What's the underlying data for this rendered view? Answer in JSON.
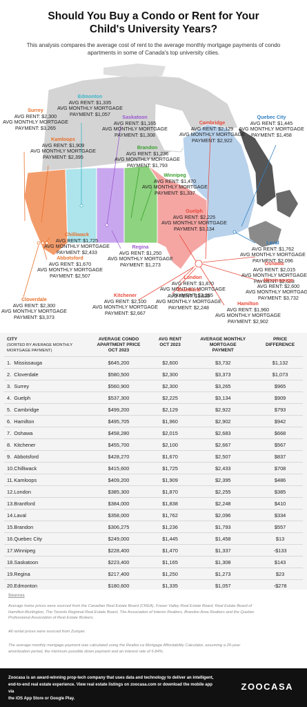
{
  "header": {
    "title_line1": "Should You Buy a Condo or Rent for Your",
    "title_line2": "Child's University Years?",
    "subtitle_line1": "This analysis compares the average cost of rent to the average monthly mortgage payments of condo",
    "subtitle_line2": "apartments in some of Canada's top university cities."
  },
  "colors": {
    "bc": "#f39c6b",
    "alberta": "#aee4ec",
    "saskatchewan": "#c9a7ee",
    "manitoba": "#8ed37f",
    "ontario": "#f5a6a3",
    "quebec": "#b8d2ec",
    "atlantic": "#8a8a8a",
    "north": "#cccccc",
    "bc_text": "#e8702a",
    "alberta_text": "#3bb5c9",
    "sask_text": "#9b59d0",
    "manitoba_text": "#3aa02e",
    "ontario_text": "#e94b3c",
    "quebec_text": "#2f7fc1"
  },
  "map_labels": {
    "edmonton": {
      "name": "Edmonton",
      "l1": "AVG RENT: $1,335",
      "l2": "AVG MONTHLY MORTGAGE",
      "l3": "PAYMENT: $1,057"
    },
    "surrey": {
      "name": "Surrey",
      "l1": "AVG RENT: $2,300",
      "l2": "AVG MONTHLY MORTGAGE",
      "l3": "PAYMENT: $3,265"
    },
    "saskatoon": {
      "name": "Saskatoon",
      "l1": "AVG RENT: $1,165",
      "l2": "AVG MONTHLY MORTGAGE",
      "l3": "PAYMENT: $1,308"
    },
    "cambridge": {
      "name": "Cambridge",
      "l1": "AVG RENT: $2,129",
      "l2": "AVG MONTHLY MORTGAGE",
      "l3": "PAYMENT: $2,922"
    },
    "quebec_city": {
      "name": "Quebec City",
      "l1": "AVG RENT: $1,445",
      "l2": "AVG MONTHLY MORTGAGE",
      "l3": "PAYMENT: $1,458"
    },
    "kamloops": {
      "name": "Kamloops",
      "l1": "AVG RENT: $1,909",
      "l2": "AVG MONTHLY MORTGAGE",
      "l3": "PAYMENT: $2,395"
    },
    "brandon": {
      "name": "Brandon",
      "l1": "AVG RENT: $1,236",
      "l2": "AVG MONTHLY MORTGAGE",
      "l3": "PAYMENT: $1,793"
    },
    "winnipeg": {
      "name": "Winnipeg",
      "l1": "AVG RENT: $1,470",
      "l2": "AVG MONTHLY MORTGAGE",
      "l3": "PAYMENT: $1,337"
    },
    "guelph": {
      "name": "Guelph",
      "l1": "AVG RENT: $2,225",
      "l2": "AVG MONTHLY MORTGAGE",
      "l3": "PAYMENT: $3,134"
    },
    "chilliwack": {
      "name": "Chilliwack",
      "l1": "AVG RENT: $1,725",
      "l2": "AVG MONTHLY MORTGAGE",
      "l3": "PAYMENT: $2,433"
    },
    "regina": {
      "name": "Regina",
      "l1": "AVG RENT: $1,250",
      "l2": "AVG MONTHLY MORTGAGE",
      "l3": "PAYMENT: $1,273"
    },
    "laval": {
      "name": "Laval",
      "l1": "AVG RENT: $1,762",
      "l2": "AVG MONTHLY MORTGAGE",
      "l3": "PAYMENT: $2,096"
    },
    "abbotsford": {
      "name": "Abbotsford",
      "l1": "AVG RENT: $1,670",
      "l2": "AVG MONTHLY MORTGAGE",
      "l3": "PAYMENT: $2,507"
    },
    "oshawa": {
      "name": "Oshawa",
      "l1": "AVG RENT: $2,015",
      "l2": "AVG MONTHLY MORTGAGE",
      "l3": "PAYMENT: $2,683"
    },
    "london": {
      "name": "London",
      "l1": "AVG RENT: $1,870",
      "l2": "AVG MONTHLY MORTGAGE",
      "l3": "PAYMENT: $2,255"
    },
    "kitchener": {
      "name": "Kitchener",
      "l1": "AVG RENT: $2,100",
      "l2": "AVG MONTHLY MORTGAGE",
      "l3": "PAYMENT: $2,667"
    },
    "mississauga": {
      "name": "Mississauga",
      "l1": "AVG RENT: $2,600",
      "l2": "AVG MONTHLY MORTGAGE",
      "l3": "PAYMENT: $3,732"
    },
    "brantford": {
      "name": "Brantford",
      "l1": "AVG RENT: $1,838",
      "l2": "AVG MONTHLY MORTGAGE",
      "l3": "PAYMENT: $2,248"
    },
    "cloverdale": {
      "name": "Cloverdale",
      "l1": "AVG RENT: $2,300",
      "l2": "AVG MONTHLY MORTGAGE",
      "l3": "PAYMENT: $3,373"
    },
    "hamilton": {
      "name": "Hamilton",
      "l1": "AVG RENT: $1,960",
      "l2": "AVG MONTHLY MORTGAGE",
      "l3": "PAYMENT: $2,902"
    }
  },
  "table": {
    "headers": {
      "city": "CITY",
      "city_sub1": "(SORTED BY AVERAGE MONTHLY",
      "city_sub2": "MORTGAGE PAYMENT)",
      "price1": "AVERAGE CONDO",
      "price2": "APARTMENT PRICE",
      "price3": "OCT 2023",
      "rent1": "AVG RENT",
      "rent2": "OCT 2023",
      "mort1": "AVERAGE MONTHLY",
      "mort2": "MORTGAGE",
      "mort3": "PAYMENT",
      "diff1": "PRICE",
      "diff2": "DIFFERENCE"
    },
    "rows": [
      {
        "idx": "1.",
        "city": "Mississauga",
        "price": "$645,200",
        "rent": "$2,600",
        "mortgage": "$3,732",
        "diff": "$1,132"
      },
      {
        "idx": "2.",
        "city": "Cloverdale",
        "price": "$580,500",
        "rent": "$2,300",
        "mortgage": "$3,373",
        "diff": "$1,073"
      },
      {
        "idx": "3.",
        "city": "Surrey",
        "price": "$560,900",
        "rent": "$2,300",
        "mortgage": "$3,265",
        "diff": "$965"
      },
      {
        "idx": "4.",
        "city": "Guelph",
        "price": "$537,300",
        "rent": "$2,225",
        "mortgage": "$3,134",
        "diff": "$909"
      },
      {
        "idx": "5.",
        "city": "Cambridge",
        "price": "$499,200",
        "rent": "$2,129",
        "mortgage": "$2,922",
        "diff": "$793"
      },
      {
        "idx": "6.",
        "city": "Hamilton",
        "price": "$495,705",
        "rent": "$1,960",
        "mortgage": "$2,902",
        "diff": "$942"
      },
      {
        "idx": "7.",
        "city": "Oshawa",
        "price": "$458,280",
        "rent": "$2,015",
        "mortgage": "$2,683",
        "diff": "$668"
      },
      {
        "idx": "8.",
        "city": "Kitchener",
        "price": "$455,700",
        "rent": "$2,100",
        "mortgage": "$2,667",
        "diff": "$567"
      },
      {
        "idx": "9.",
        "city": "Abbotsford",
        "price": "$428,270",
        "rent": "$1,670",
        "mortgage": "$2,507",
        "diff": "$837"
      },
      {
        "idx": "10.",
        "city": "Chilliwack",
        "price": "$415,600",
        "rent": "$1,725",
        "mortgage": "$2,433",
        "diff": "$708"
      },
      {
        "idx": "11.",
        "city": "Kamloops",
        "price": "$409,200",
        "rent": "$1,909",
        "mortgage": "$2,395",
        "diff": "$486"
      },
      {
        "idx": "12.",
        "city": "London",
        "price": "$385,300",
        "rent": "$1,870",
        "mortgage": "$2,255",
        "diff": "$385"
      },
      {
        "idx": "13.",
        "city": "Brantford",
        "price": "$384,000",
        "rent": "$1,838",
        "mortgage": "$2,248",
        "diff": "$410"
      },
      {
        "idx": "14.",
        "city": "Laval",
        "price": "$358,000",
        "rent": "$1,762",
        "mortgage": "$2,096",
        "diff": "$334"
      },
      {
        "idx": "15.",
        "city": "Brandon",
        "price": "$306,275",
        "rent": "$1,236",
        "mortgage": "$1,793",
        "diff": "$557"
      },
      {
        "idx": "16.",
        "city": "Quebec City",
        "price": "$249,000",
        "rent": "$1,445",
        "mortgage": "$1,458",
        "diff": "$13"
      },
      {
        "idx": "17.",
        "city": "Winnipeg",
        "price": "$228,400",
        "rent": "$1,470",
        "mortgage": "$1,337",
        "diff": "-$133"
      },
      {
        "idx": "18.",
        "city": "Saskatoon",
        "price": "$223,400",
        "rent": "$1,165",
        "mortgage": "$1,308",
        "diff": "$143"
      },
      {
        "idx": "19.",
        "city": "Regina",
        "price": "$217,400",
        "rent": "$1,250",
        "mortgage": "$1,273",
        "diff": "$23"
      },
      {
        "idx": "20.",
        "city": "Edmonton",
        "price": "$180,600",
        "rent": "$1,335",
        "mortgage": "$1,057",
        "diff": "-$278"
      }
    ]
  },
  "sources": {
    "heading": "Sources",
    "p1a": "Average home prices were sourced from the Canadian Real Estate Board (CREA), Fraser Valley Real Estate Board, Real Estate Board of",
    "p1b": "Hamilton-Burlington, The Toronto Regional Real Estate Board, The Association of Interior Realtors, Brandon Area Realtors and the Quebec",
    "p1c": "Professional Association of Real Estate Brokers.",
    "p2": "All rental prices were sourced from Zumper.",
    "p3a": "The average monthly mortgage payment was calculated using the Realtor.ca Mortgage Affordability Calculator, assuming a 25-year",
    "p3b": "amortization period, the minimum possible down payment and an interest rate of 6.84%."
  },
  "footer": {
    "line1": "Zoocasa is an award-winning prop-tech company that uses data and technology to deliver an intelligent,",
    "line2": "end-to-end real estate experience. View real estate listings on zoocasa.com or download the mobile app via",
    "line3": "the iOS App Store or Google Play.",
    "logo": "ZOOCASA"
  }
}
